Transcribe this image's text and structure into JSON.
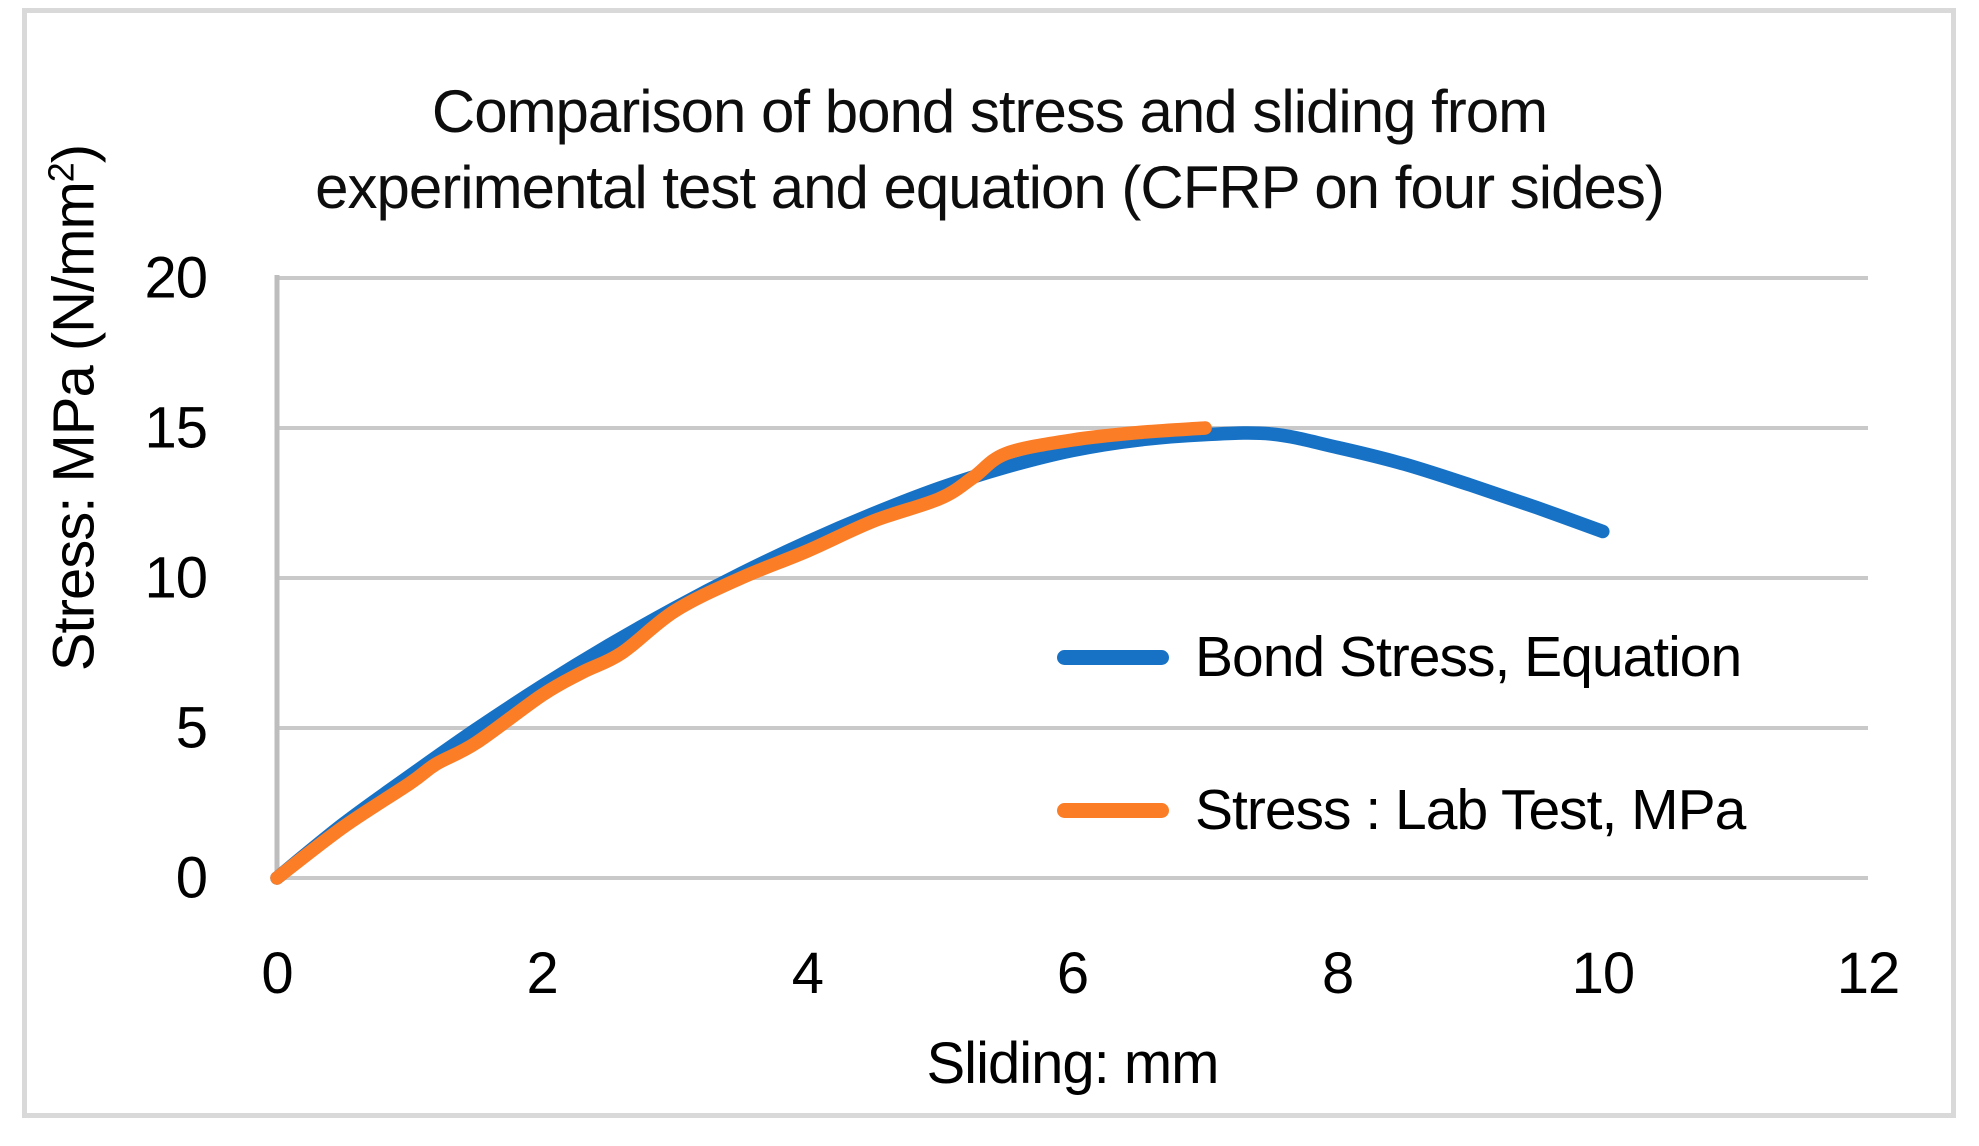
{
  "chart_data": {
    "type": "line",
    "title": "Comparison of bond stress and sliding from experimental test and equation (CFRP on four sides)",
    "title_lines": [
      "Comparison of bond stress and sliding from",
      "experimental test and equation (CFRP on four sides)"
    ],
    "xlabel": "Sliding: mm",
    "ylabel": "Stress: MPa (N/mm²)",
    "ylabel_parts": {
      "prefix": "Stress: MPa (N/mm",
      "sup": "2",
      "suffix": ")"
    },
    "xlim": [
      0,
      12
    ],
    "ylim": [
      0,
      20
    ],
    "x_ticks": [
      0,
      2,
      4,
      6,
      8,
      10,
      12
    ],
    "y_ticks": [
      0,
      5,
      10,
      15,
      20
    ],
    "grid": "horizontal-only",
    "legend_position": "inside-right",
    "series": [
      {
        "name": "Bond Stress, Equation",
        "color": "#1772C6",
        "points": [
          [
            0,
            0
          ],
          [
            0.5,
            1.8
          ],
          [
            1,
            3.4
          ],
          [
            1.5,
            4.95
          ],
          [
            2,
            6.4
          ],
          [
            2.5,
            7.75
          ],
          [
            3,
            9.0
          ],
          [
            3.5,
            10.15
          ],
          [
            4,
            11.2
          ],
          [
            4.5,
            12.15
          ],
          [
            5,
            13.0
          ],
          [
            5.5,
            13.7
          ],
          [
            6,
            14.25
          ],
          [
            6.5,
            14.6
          ],
          [
            7,
            14.78
          ],
          [
            7.5,
            14.8
          ],
          [
            8,
            14.35
          ],
          [
            8.5,
            13.8
          ],
          [
            9,
            13.1
          ],
          [
            9.5,
            12.35
          ],
          [
            10,
            11.55
          ]
        ]
      },
      {
        "name": "Stress : Lab Test, MPa",
        "color": "#FB7D26",
        "points": [
          [
            0,
            0
          ],
          [
            0.5,
            1.7
          ],
          [
            1,
            3.15
          ],
          [
            1.2,
            3.8
          ],
          [
            1.5,
            4.5
          ],
          [
            2,
            6.1
          ],
          [
            2.3,
            6.85
          ],
          [
            2.6,
            7.5
          ],
          [
            3,
            8.9
          ],
          [
            3.5,
            10.0
          ],
          [
            4,
            10.9
          ],
          [
            4.5,
            11.9
          ],
          [
            5,
            12.65
          ],
          [
            5.25,
            13.35
          ],
          [
            5.5,
            14.15
          ],
          [
            6,
            14.6
          ],
          [
            6.5,
            14.85
          ],
          [
            7,
            15.0
          ]
        ]
      }
    ]
  },
  "colors": {
    "gridline": "#C9C9C9",
    "axis_line": "#BDBDBD",
    "frame_border": "#D9D9D9",
    "text": "#000000"
  }
}
